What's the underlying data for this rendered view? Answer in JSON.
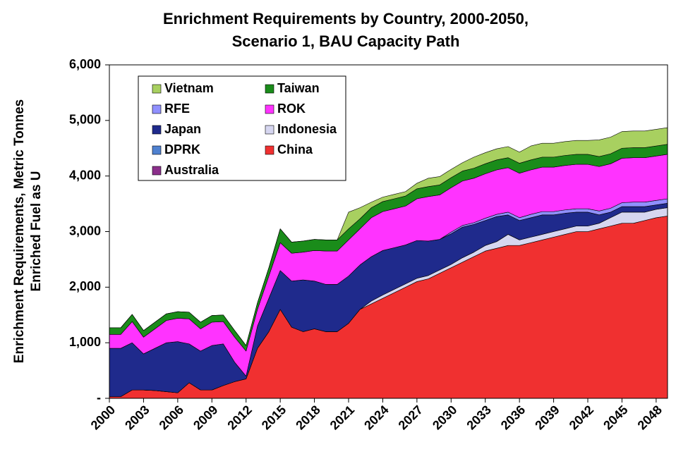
{
  "chart_data": {
    "type": "stacked-area",
    "title": [
      "Enrichment Requirements by Country, 2000-2050,",
      "Scenario 1, BAU Capacity Path"
    ],
    "ylabel": [
      "Enrichment Requirements, Metric Tonnes",
      "Enriched Fuel as U"
    ],
    "categories": [
      "2000",
      null,
      null,
      "2003",
      null,
      null,
      "2006",
      null,
      null,
      "2009",
      null,
      null,
      "2012",
      null,
      null,
      "2015",
      null,
      null,
      "2018",
      null,
      null,
      "2021",
      null,
      null,
      "2024",
      null,
      null,
      "2027",
      null,
      null,
      "2030",
      null,
      null,
      "2033",
      null,
      null,
      "2036",
      null,
      null,
      "2039",
      null,
      null,
      "2042",
      null,
      null,
      "2045",
      null,
      null,
      "2048",
      null
    ],
    "ylim": [
      0,
      6000
    ],
    "yticks": [
      {
        "value": 0,
        "label": "-"
      },
      {
        "value": 1000,
        "label": "1,000"
      },
      {
        "value": 2000,
        "label": "2,000"
      },
      {
        "value": 3000,
        "label": "3,000"
      },
      {
        "value": 4000,
        "label": "4,000"
      },
      {
        "value": 5000,
        "label": "5,000"
      },
      {
        "value": 6000,
        "label": "6,000"
      }
    ],
    "series": [
      {
        "name": "Australia",
        "color": "#8b2f8b",
        "values": [
          0,
          0,
          0,
          0,
          0,
          0,
          0,
          0,
          0,
          0,
          0,
          0,
          0,
          0,
          0,
          0,
          0,
          0,
          0,
          0,
          0,
          0,
          0,
          0,
          0,
          0,
          0,
          0,
          0,
          0,
          0,
          0,
          0,
          0,
          0,
          0,
          0,
          0,
          0,
          0,
          0,
          0,
          0,
          0,
          0,
          0,
          0,
          0,
          0,
          0
        ]
      },
      {
        "name": "China",
        "color": "#f03030",
        "values": [
          30,
          30,
          150,
          150,
          140,
          120,
          100,
          280,
          150,
          150,
          230,
          300,
          350,
          900,
          1200,
          1600,
          1280,
          1200,
          1250,
          1200,
          1200,
          1350,
          1600,
          1700,
          1800,
          1900,
          2000,
          2100,
          2150,
          2250,
          2350,
          2450,
          2550,
          2650,
          2700,
          2750,
          2750,
          2800,
          2850,
          2900,
          2950,
          3000,
          3000,
          3050,
          3100,
          3150,
          3150,
          3200,
          3250,
          3280
        ]
      },
      {
        "name": "DPRK",
        "color": "#4f81d0",
        "values": [
          0,
          0,
          0,
          0,
          0,
          0,
          0,
          0,
          0,
          0,
          0,
          0,
          0,
          0,
          0,
          0,
          0,
          0,
          0,
          0,
          0,
          0,
          0,
          0,
          0,
          0,
          0,
          0,
          0,
          0,
          0,
          0,
          0,
          0,
          0,
          0,
          0,
          0,
          0,
          0,
          0,
          0,
          0,
          0,
          0,
          0,
          0,
          0,
          0,
          0
        ]
      },
      {
        "name": "Indonesia",
        "color": "#d6d6f0",
        "values": [
          0,
          0,
          0,
          0,
          0,
          0,
          0,
          0,
          0,
          0,
          0,
          0,
          0,
          0,
          0,
          0,
          0,
          0,
          0,
          0,
          0,
          0,
          0,
          50,
          60,
          60,
          60,
          60,
          60,
          60,
          60,
          80,
          80,
          100,
          120,
          200,
          100,
          100,
          100,
          100,
          100,
          100,
          100,
          100,
          150,
          200,
          200,
          150,
          150,
          150
        ]
      },
      {
        "name": "Japan",
        "color": "#1f2a8c",
        "values": [
          870,
          870,
          850,
          650,
          760,
          880,
          920,
          700,
          700,
          800,
          750,
          350,
          50,
          400,
          600,
          700,
          830,
          930,
          860,
          850,
          850,
          850,
          800,
          800,
          800,
          750,
          700,
          680,
          620,
          550,
          550,
          550,
          500,
          450,
          450,
          350,
          350,
          350,
          350,
          300,
          280,
          250,
          250,
          150,
          100,
          100,
          100,
          100,
          80,
          80
        ]
      },
      {
        "name": "RFE",
        "color": "#9090ff",
        "values": [
          0,
          0,
          0,
          0,
          0,
          0,
          0,
          0,
          0,
          0,
          0,
          0,
          0,
          0,
          0,
          0,
          0,
          0,
          0,
          0,
          0,
          0,
          0,
          0,
          0,
          0,
          0,
          0,
          0,
          0,
          30,
          30,
          30,
          40,
          40,
          50,
          50,
          60,
          60,
          60,
          60,
          60,
          60,
          70,
          70,
          70,
          80,
          80,
          80,
          80
        ]
      },
      {
        "name": "ROK",
        "color": "#ff33ff",
        "values": [
          250,
          250,
          380,
          300,
          350,
          400,
          420,
          450,
          400,
          420,
          400,
          450,
          450,
          300,
          400,
          500,
          500,
          500,
          550,
          600,
          600,
          650,
          650,
          700,
          700,
          700,
          700,
          750,
          800,
          800,
          800,
          800,
          800,
          800,
          800,
          800,
          800,
          800,
          800,
          800,
          800,
          800,
          800,
          800,
          800,
          800,
          800,
          800,
          800,
          800
        ]
      },
      {
        "name": "Taiwan",
        "color": "#1a8c1a",
        "values": [
          120,
          120,
          130,
          120,
          120,
          120,
          120,
          120,
          120,
          120,
          120,
          120,
          100,
          120,
          150,
          250,
          200,
          200,
          200,
          200,
          200,
          200,
          180,
          180,
          180,
          180,
          180,
          180,
          180,
          180,
          180,
          180,
          180,
          180,
          180,
          180,
          180,
          180,
          180,
          180,
          180,
          180,
          180,
          180,
          180,
          180,
          180,
          180,
          180,
          180
        ]
      },
      {
        "name": "Vietnam",
        "color": "#a8d060",
        "values": [
          0,
          0,
          0,
          0,
          0,
          0,
          0,
          0,
          0,
          0,
          0,
          0,
          0,
          0,
          0,
          0,
          0,
          0,
          0,
          0,
          0,
          300,
          200,
          100,
          80,
          80,
          80,
          100,
          150,
          150,
          150,
          150,
          200,
          200,
          200,
          200,
          200,
          250,
          250,
          250,
          250,
          250,
          250,
          300,
          300,
          300,
          300,
          300,
          300,
          300
        ]
      }
    ]
  }
}
